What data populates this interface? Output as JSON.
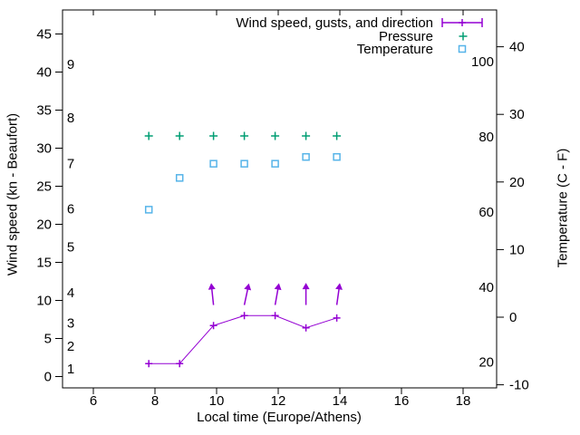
{
  "legend": {
    "items": [
      {
        "label": "Wind speed, gusts, and direction",
        "marker": "errorbar-plus",
        "color": "#9400d3"
      },
      {
        "label": "Pressure",
        "marker": "plus",
        "color": "#009e73"
      },
      {
        "label": "Temperature",
        "marker": "open-square",
        "color": "#56b4e9"
      }
    ]
  },
  "axes": {
    "x": {
      "label": "Local time (Europe/Athens)",
      "ticks": [
        6,
        8,
        10,
        12,
        14,
        16,
        18
      ],
      "range": [
        5,
        19.1
      ]
    },
    "y_left": {
      "label": "Wind speed (kn - Beaufort)",
      "kn_ticks": [
        0,
        5,
        10,
        15,
        20,
        25,
        30,
        35,
        40,
        45
      ],
      "kn_range": [
        -1.5,
        48.2
      ],
      "beaufort_scale": [
        {
          "bft": "1",
          "kn": 1
        },
        {
          "bft": "2",
          "kn": 4
        },
        {
          "bft": "3",
          "kn": 7
        },
        {
          "bft": "4",
          "kn": 11
        },
        {
          "bft": "5",
          "kn": 17
        },
        {
          "bft": "6",
          "kn": 22
        },
        {
          "bft": "7",
          "kn": 28
        },
        {
          "bft": "8",
          "kn": 34
        },
        {
          "bft": "9",
          "kn": 41
        }
      ]
    },
    "y_right": {
      "label": "Temperature (C - F)",
      "celsius_ticks": [
        -10,
        0,
        10,
        20,
        30,
        40
      ],
      "celsius_range": [
        -10.5,
        45.4
      ],
      "fahrenheit_labels": [
        20,
        40,
        60,
        80,
        100
      ]
    }
  },
  "chart_data": {
    "type": "line",
    "x_hours": [
      7.8,
      8.8,
      9.9,
      10.9,
      11.9,
      12.9,
      13.9
    ],
    "series": [
      {
        "name": "Wind speed",
        "unit": "kn",
        "style": "line-with-plus-markers",
        "color": "#9400d3",
        "values_kn": [
          1.7,
          1.7,
          6.7,
          8.0,
          8.0,
          6.4,
          7.7
        ]
      },
      {
        "name": "Wind direction arrows",
        "style": "arrows",
        "color": "#9400d3",
        "x_hours": [
          9.9,
          10.9,
          11.9,
          12.9,
          13.9
        ],
        "rotation_deg_from_vertical": [
          -6,
          12,
          10,
          0,
          8
        ],
        "base_kn": 9.4,
        "tip_kn": 12.3
      },
      {
        "name": "Pressure",
        "style": "plus-markers",
        "color": "#009e73",
        "value_axis": "hidden",
        "display_level_kn_equivalent": [
          31.6,
          31.6,
          31.6,
          31.6,
          31.6,
          31.6,
          31.6
        ]
      },
      {
        "name": "Temperature",
        "unit": "C",
        "style": "open-square-markers",
        "color": "#56b4e9",
        "values_c": [
          15.9,
          20.6,
          22.7,
          22.7,
          22.7,
          23.7,
          23.7
        ]
      }
    ]
  }
}
